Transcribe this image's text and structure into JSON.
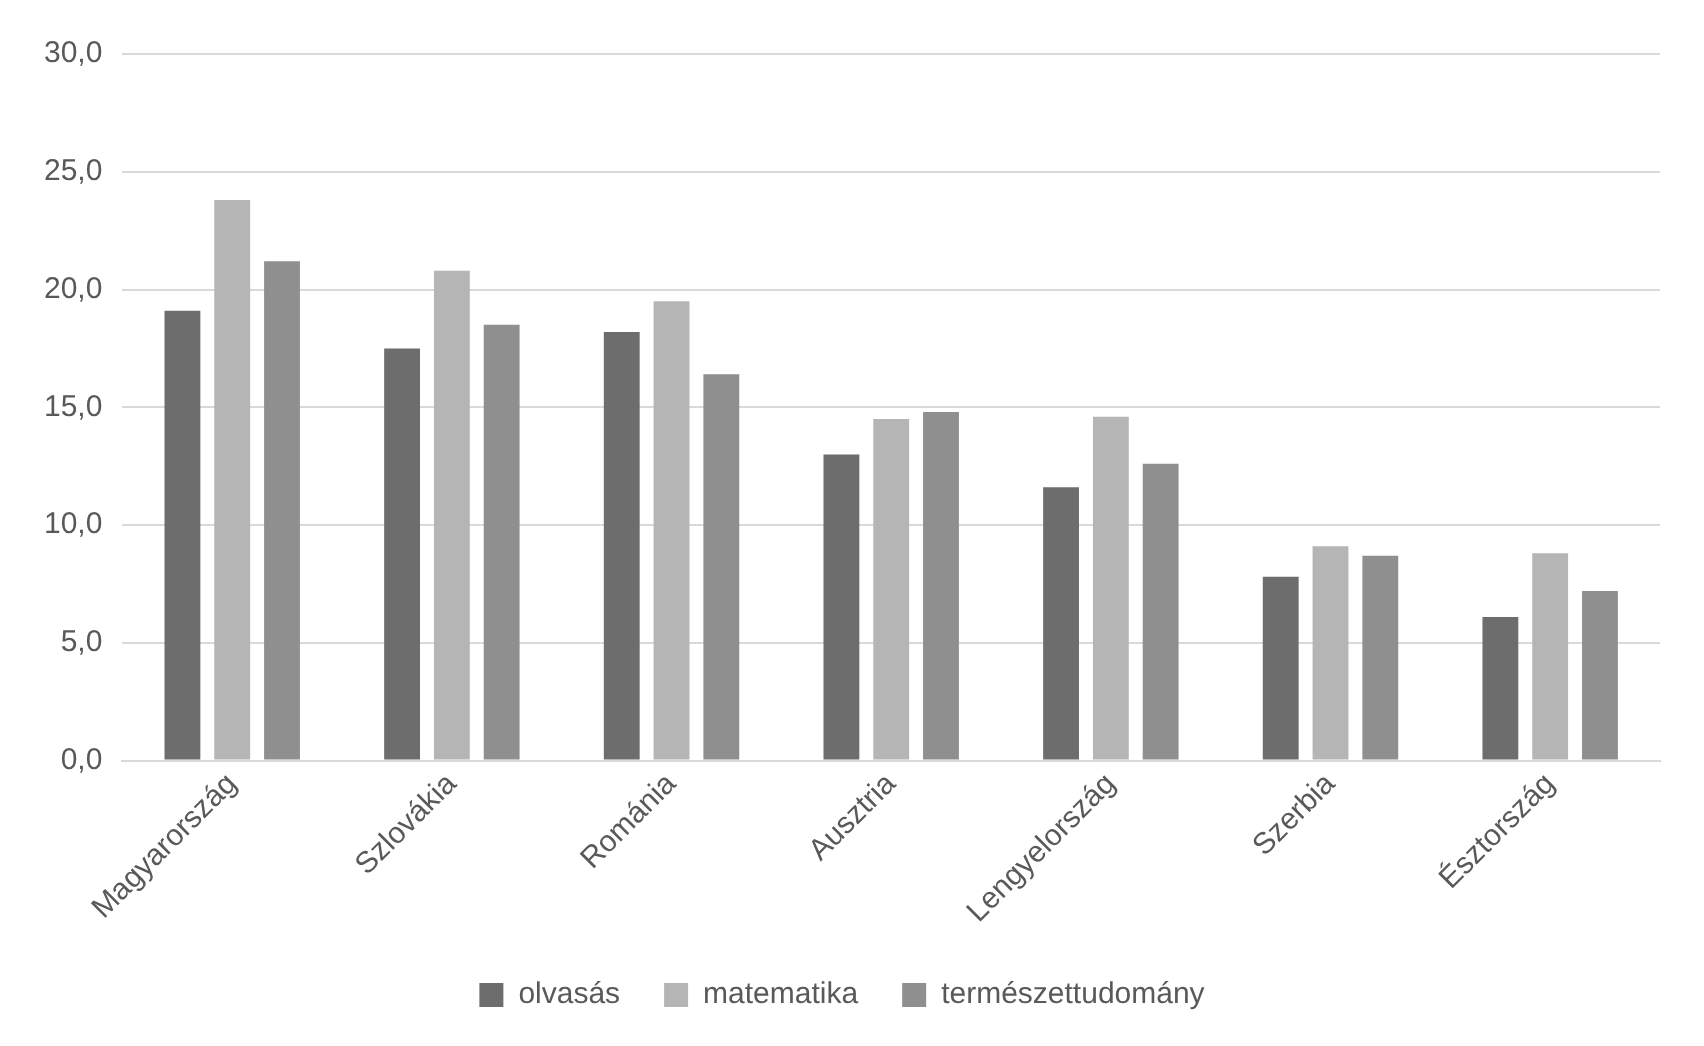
{
  "chart_data": {
    "type": "bar",
    "categories": [
      "Magyarország",
      "Szlovákia",
      "Románia",
      "Ausztria",
      "Lengyelország",
      "Szerbia",
      "Észtország"
    ],
    "series": [
      {
        "name": "olvasás",
        "color": "#6d6d6d",
        "values": [
          19.1,
          17.5,
          18.2,
          13.0,
          11.6,
          7.8,
          6.1
        ]
      },
      {
        "name": "matematika",
        "color": "#b5b5b5",
        "values": [
          23.8,
          20.8,
          19.5,
          14.5,
          14.6,
          9.1,
          8.8
        ]
      },
      {
        "name": "természettudomány",
        "color": "#8f8f8f",
        "values": [
          21.2,
          18.5,
          16.4,
          14.8,
          12.6,
          8.7,
          7.2
        ]
      }
    ],
    "ylim": [
      0,
      30
    ],
    "yticks": [
      {
        "value": 0,
        "label": "0,0"
      },
      {
        "value": 5,
        "label": "5,0"
      },
      {
        "value": 10,
        "label": "10,0"
      },
      {
        "value": 15,
        "label": "15,0"
      },
      {
        "value": 20,
        "label": "20,0"
      },
      {
        "value": 25,
        "label": "25,0"
      },
      {
        "value": 30,
        "label": "30,0"
      }
    ],
    "grid": "y",
    "legend": "bottom"
  }
}
